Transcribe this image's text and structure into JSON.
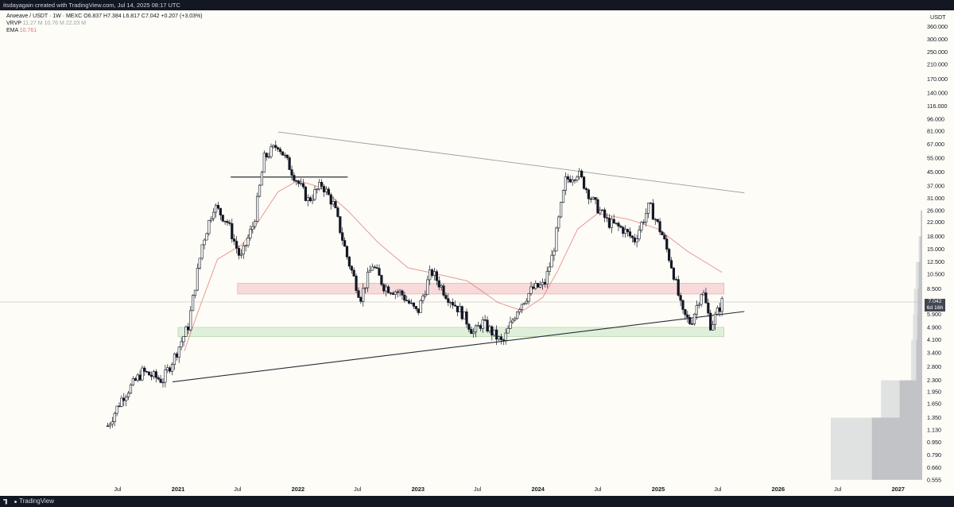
{
  "header": {
    "attribution": "itsdayagain created with TradingView.com, Jul 14, 2025 08:17 UTC"
  },
  "legend": {
    "symbol": "Arweave / USDT · 1W · MEXC",
    "ohlc": "O6.837 H7.384 L6.817 C7.042 +0.207 (+3.03%)",
    "vrvp_label": "VRVP",
    "vrvp_values": "11.27 M  10.76 M  22.03 M",
    "ema_label": "EMA",
    "ema_value": "10.761"
  },
  "price_axis": {
    "currency": "USDT",
    "ticks": [
      "360.000",
      "300.000",
      "250.000",
      "210.000",
      "170.000",
      "140.000",
      "116.000",
      "96.000",
      "81.000",
      "67.000",
      "55.000",
      "45.000",
      "37.000",
      "31.000",
      "26.000",
      "22.000",
      "18.000",
      "15.000",
      "12.500",
      "10.500",
      "8.500",
      "7.042",
      "5.900",
      "4.900",
      "4.100",
      "3.400",
      "2.800",
      "2.300",
      "1.950",
      "1.650",
      "1.350",
      "1.130",
      "0.950",
      "0.790",
      "0.660",
      "0.555"
    ],
    "current_price": "7.042",
    "countdown": "6d 16h"
  },
  "time_axis": {
    "ticks": [
      "Jul",
      "2021",
      "Jul",
      "2022",
      "Jul",
      "2023",
      "Jul",
      "2024",
      "Jul",
      "2025",
      "Jul",
      "2026",
      "Jul",
      "2027"
    ]
  },
  "footer": {
    "brand": "TradingView"
  },
  "colors": {
    "background": "#fdfcf6",
    "candle": "#131722",
    "ema": "#e57373",
    "resistance_zone": "#f8d7d9",
    "support_zone": "#dcefd8",
    "volume_profile": "#c9cbd0"
  },
  "chart_data": {
    "type": "candlestick",
    "pair": "AR/USDT",
    "timeframe": "1W",
    "scale": "log",
    "ylim": [
      0.555,
      360
    ],
    "x_range": [
      "2020-06",
      "2027-03"
    ],
    "last_close": 7.042,
    "ema_last": 10.761,
    "series": [
      {
        "name": "price",
        "points": [
          {
            "date": "2020-06-01",
            "close": 1.2
          },
          {
            "date": "2020-07-15",
            "close": 1.8
          },
          {
            "date": "2020-09-15",
            "close": 2.6
          },
          {
            "date": "2020-11-15",
            "close": 2.3
          },
          {
            "date": "2020-12-20",
            "close": 3.2
          },
          {
            "date": "2021-02-01",
            "close": 5.0
          },
          {
            "date": "2021-03-15",
            "close": 16.0
          },
          {
            "date": "2021-04-20",
            "close": 28.0
          },
          {
            "date": "2021-06-01",
            "close": 22.0
          },
          {
            "date": "2021-07-10",
            "close": 13.0
          },
          {
            "date": "2021-08-20",
            "close": 22.0
          },
          {
            "date": "2021-09-20",
            "close": 55.0
          },
          {
            "date": "2021-11-01",
            "close": 67.0
          },
          {
            "date": "2021-12-15",
            "close": 45.0
          },
          {
            "date": "2022-02-01",
            "close": 30.0
          },
          {
            "date": "2022-03-15",
            "close": 38.0
          },
          {
            "date": "2022-04-20",
            "close": 28.0
          },
          {
            "date": "2022-06-01",
            "close": 13.0
          },
          {
            "date": "2022-07-10",
            "close": 7.5
          },
          {
            "date": "2022-08-15",
            "close": 12.0
          },
          {
            "date": "2022-09-20",
            "close": 8.8
          },
          {
            "date": "2022-11-10",
            "close": 8.0
          },
          {
            "date": "2022-12-30",
            "close": 6.0
          },
          {
            "date": "2023-02-10",
            "close": 11.0
          },
          {
            "date": "2023-03-25",
            "close": 8.0
          },
          {
            "date": "2023-05-15",
            "close": 6.0
          },
          {
            "date": "2023-06-20",
            "close": 4.5
          },
          {
            "date": "2023-07-15",
            "close": 5.3
          },
          {
            "date": "2023-09-15",
            "close": 3.9
          },
          {
            "date": "2023-11-01",
            "close": 6.5
          },
          {
            "date": "2023-12-15",
            "close": 8.5
          },
          {
            "date": "2024-01-20",
            "close": 9.0
          },
          {
            "date": "2024-02-15",
            "close": 14.0
          },
          {
            "date": "2024-03-25",
            "close": 40.0
          },
          {
            "date": "2024-05-01",
            "close": 45.0
          },
          {
            "date": "2024-06-15",
            "close": 30.0
          },
          {
            "date": "2024-08-01",
            "close": 22.0
          },
          {
            "date": "2024-09-15",
            "close": 20.0
          },
          {
            "date": "2024-10-20",
            "close": 17.0
          },
          {
            "date": "2024-12-05",
            "close": 28.0
          },
          {
            "date": "2025-01-15",
            "close": 18.0
          },
          {
            "date": "2025-02-15",
            "close": 11.0
          },
          {
            "date": "2025-03-15",
            "close": 6.0
          },
          {
            "date": "2025-04-10",
            "close": 5.2
          },
          {
            "date": "2025-05-15",
            "close": 8.5
          },
          {
            "date": "2025-06-10",
            "close": 5.0
          },
          {
            "date": "2025-07-14",
            "close": 7.042
          }
        ]
      },
      {
        "name": "EMA",
        "points": [
          {
            "date": "2021-01-20",
            "close": 3.5
          },
          {
            "date": "2021-03-01",
            "close": 6.0
          },
          {
            "date": "2021-05-01",
            "close": 13.0
          },
          {
            "date": "2021-07-15",
            "close": 16.0
          },
          {
            "date": "2021-09-01",
            "close": 22.0
          },
          {
            "date": "2021-11-01",
            "close": 34.0
          },
          {
            "date": "2022-01-01",
            "close": 40.0
          },
          {
            "date": "2022-03-15",
            "close": 36.0
          },
          {
            "date": "2022-06-01",
            "close": 26.0
          },
          {
            "date": "2022-09-01",
            "close": 16.5
          },
          {
            "date": "2022-12-01",
            "close": 11.5
          },
          {
            "date": "2023-03-01",
            "close": 10.5
          },
          {
            "date": "2023-06-01",
            "close": 9.5
          },
          {
            "date": "2023-09-01",
            "close": 7.0
          },
          {
            "date": "2023-11-15",
            "close": 6.2
          },
          {
            "date": "2024-01-15",
            "close": 7.5
          },
          {
            "date": "2024-03-01",
            "close": 11.0
          },
          {
            "date": "2024-05-01",
            "close": 20.0
          },
          {
            "date": "2024-07-01",
            "close": 25.0
          },
          {
            "date": "2024-10-01",
            "close": 23.0
          },
          {
            "date": "2025-01-01",
            "close": 20.0
          },
          {
            "date": "2025-04-01",
            "close": 14.5
          },
          {
            "date": "2025-07-14",
            "close": 10.761
          }
        ]
      }
    ],
    "zones": [
      {
        "from": "2021-07-01",
        "to": "2025-07-20",
        "low": 7.9,
        "high": 9.2
      },
      {
        "from": "2021-01-01",
        "to": "2025-07-20",
        "low": 4.3,
        "high": 4.9
      }
    ],
    "trendlines": [
      {
        "from": {
          "date": "2020-12-15",
          "price": 2.25
        },
        "to": {
          "date": "2025-09-20",
          "price": 6.15
        }
      },
      {
        "from": {
          "date": "2021-11-01",
          "price": 80.0
        },
        "to": {
          "date": "2025-09-20",
          "price": 33.5
        }
      }
    ],
    "levels": [
      {
        "from": "2021-06-10",
        "to": "2022-06-01",
        "price": 42.0
      }
    ],
    "volume_profile": [
      {
        "low": 0.555,
        "high": 1.35,
        "volume": 100
      },
      {
        "low": 1.35,
        "high": 2.3,
        "volume": 45
      },
      {
        "low": 2.3,
        "high": 4.1,
        "volume": 12
      },
      {
        "low": 4.1,
        "high": 5.9,
        "volume": 10
      },
      {
        "low": 5.9,
        "high": 8.5,
        "volume": 9
      },
      {
        "low": 8.5,
        "high": 12.5,
        "volume": 7
      },
      {
        "low": 12.5,
        "high": 18.0,
        "volume": 4
      },
      {
        "low": 18.0,
        "high": 26.0,
        "volume": 2
      }
    ]
  }
}
